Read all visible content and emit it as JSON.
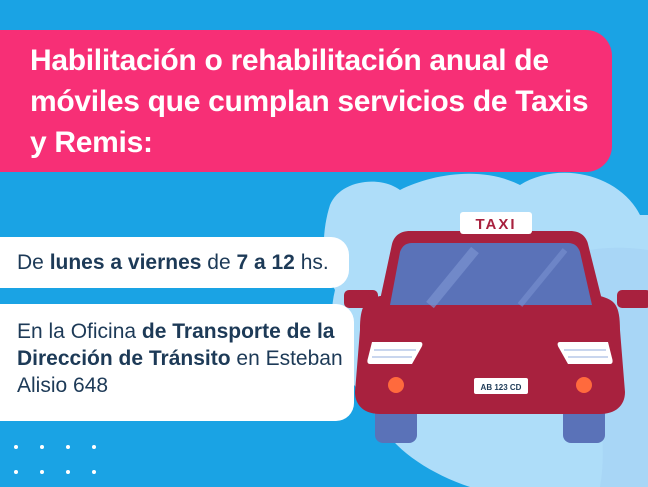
{
  "title": "Habilitación o rehabilitación anual de móviles que cumplan servicios de Taxis y Remis:",
  "schedule": {
    "prefix": "De ",
    "days": "lunes a viernes",
    "middle": " de ",
    "hours": "7 a 12",
    "suffix": " hs."
  },
  "location": {
    "prefix": "En la Oficina ",
    "office": "de Transporte de la Dirección de Tránsito",
    "suffix": " en Esteban Alisio 648"
  },
  "taxi_sign": "TAXI",
  "license_plate": "AB 123 CD",
  "colors": {
    "background": "#1aa3e4",
    "title_band": "#f72f76",
    "car_body": "#a8213e",
    "text_dark": "#1d3a57"
  }
}
